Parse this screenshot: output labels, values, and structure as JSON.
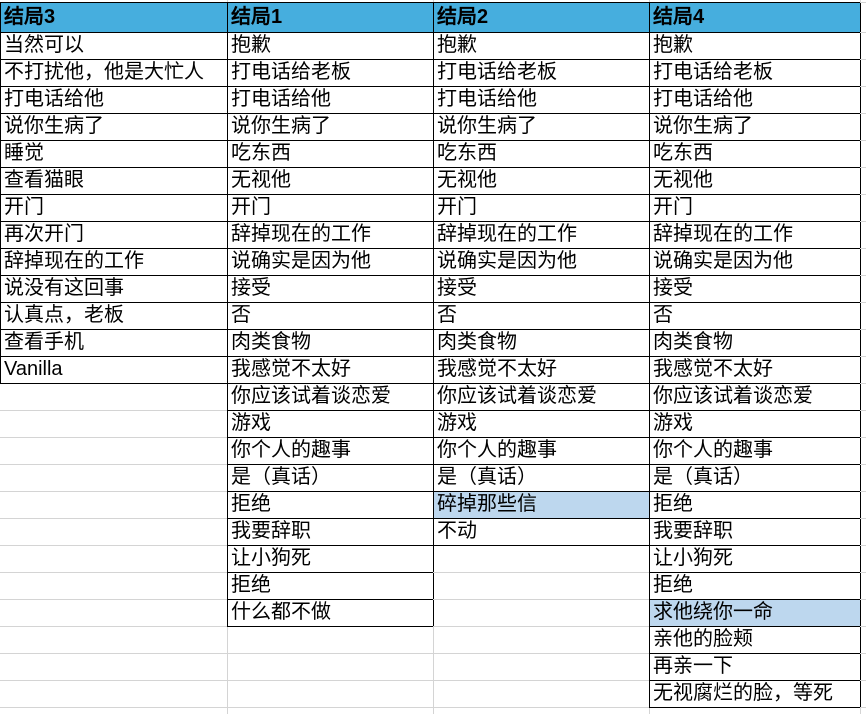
{
  "table": {
    "columns": [
      {
        "header": "结局3",
        "items": [
          "当然可以",
          "不打扰他，他是大忙人",
          "打电话给他",
          "说你生病了",
          "睡觉",
          "查看猫眼",
          "开门",
          "再次开门",
          "辞掉现在的工作",
          "说没有这回事",
          "认真点，老板",
          "查看手机",
          "Vanilla"
        ],
        "highlights": []
      },
      {
        "header": "结局1",
        "items": [
          "抱歉",
          "打电话给老板",
          "打电话给他",
          "说你生病了",
          "吃东西",
          "无视他",
          "开门",
          "辞掉现在的工作",
          "说确实是因为他",
          "接受",
          "否",
          "肉类食物",
          "我感觉不太好",
          "你应该试着谈恋爱",
          "游戏",
          "你个人的趣事",
          "是（真话）",
          "拒绝",
          "我要辞职",
          "让小狗死",
          "拒绝",
          "什么都不做"
        ],
        "highlights": []
      },
      {
        "header": "结局2",
        "items": [
          "抱歉",
          "打电话给老板",
          "打电话给他",
          "说你生病了",
          "吃东西",
          "无视他",
          "开门",
          "辞掉现在的工作",
          "说确实是因为他",
          "接受",
          "否",
          "肉类食物",
          "我感觉不太好",
          "你应该试着谈恋爱",
          "游戏",
          "你个人的趣事",
          "是（真话）",
          "碎掉那些信",
          "不动"
        ],
        "highlights": [
          17
        ]
      },
      {
        "header": "结局4",
        "items": [
          "抱歉",
          "打电话给老板",
          "打电话给他",
          "说你生病了",
          "吃东西",
          "无视他",
          "开门",
          "辞掉现在的工作",
          "说确实是因为他",
          "接受",
          "否",
          "肉类食物",
          "我感觉不太好",
          "你应该试着谈恋爱",
          "游戏",
          "你个人的趣事",
          "是（真话）",
          "拒绝",
          "我要辞职",
          "让小狗死",
          "拒绝",
          "求他绕你一命",
          "亲他的脸颊",
          "再亲一下",
          "无视腐烂的脸，等死"
        ],
        "highlights": [
          21
        ]
      }
    ]
  },
  "colors": {
    "header_bg": "#46AEDE",
    "highlight_bg": "#BDD7EE",
    "cell_bg": "#FFFFFF",
    "border": "#000000",
    "gridline": "#D4D4D4",
    "text": "#000000"
  }
}
